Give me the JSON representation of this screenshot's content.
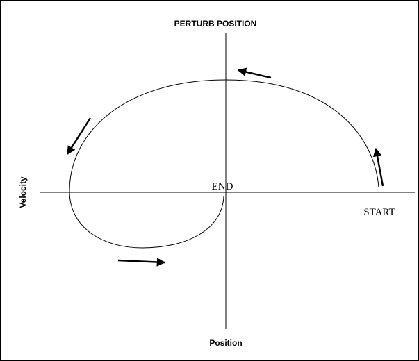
{
  "title": "PERTURB POSITION",
  "y_axis_label": "Velocity",
  "x_axis_label": "Position",
  "end_label": "END",
  "start_label": "START"
}
